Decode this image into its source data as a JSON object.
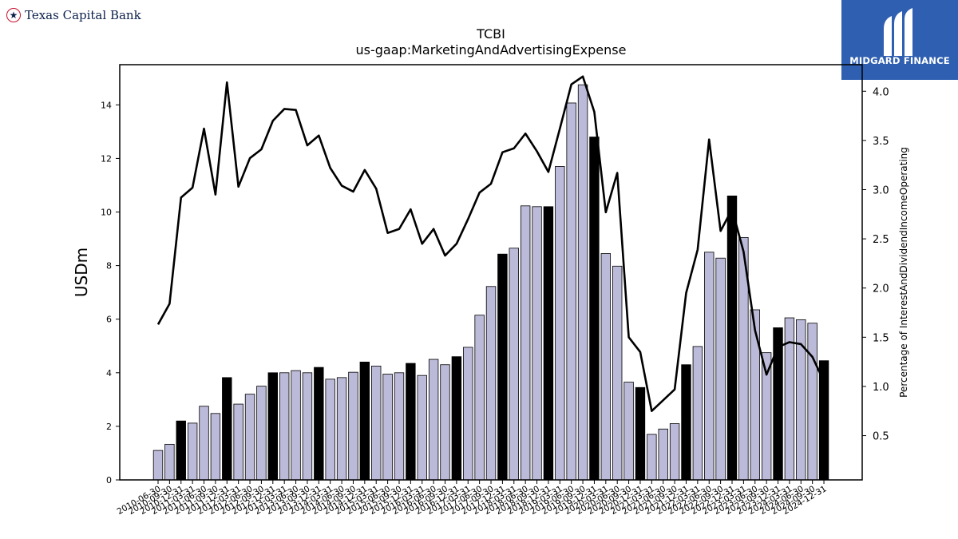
{
  "brand": {
    "company_name": "Texas Capital Bank",
    "company_icon": "star-icon",
    "badge_text": "MIDGARD FINANCE",
    "badge_color": "#2f5fb0"
  },
  "chart_data": {
    "type": "bar",
    "title": "TCBI",
    "subtitle": "us-gaap:MarketingAndAdvertisingExpense",
    "ylabel": "USDm",
    "y2label": "Percentage of InterestAndDividendIncomeOperating",
    "ylim": [
      0,
      15.5
    ],
    "y2lim": [
      0.05,
      4.27
    ],
    "yticks": [
      0,
      2,
      4,
      6,
      8,
      10,
      12,
      14
    ],
    "y2ticks": [
      0.5,
      1.0,
      1.5,
      2.0,
      2.5,
      3.0,
      3.5,
      4.0
    ],
    "bar_color": "#bcbad9",
    "highlight_color": "#000000",
    "line_color": "#000000",
    "categories": [
      "2010-06-30",
      "2010-09-30",
      "2010-12-31",
      "2011-03-31",
      "2011-06-30",
      "2011-09-30",
      "2011-12-31",
      "2012-03-31",
      "2012-06-30",
      "2012-09-30",
      "2012-12-31",
      "2013-03-31",
      "2013-06-30",
      "2013-09-30",
      "2013-12-31",
      "2014-03-31",
      "2014-06-30",
      "2014-09-30",
      "2014-12-31",
      "2015-03-31",
      "2015-06-30",
      "2015-09-30",
      "2015-12-31",
      "2016-03-31",
      "2016-06-30",
      "2016-09-30",
      "2016-12-31",
      "2017-03-31",
      "2017-06-30",
      "2017-09-30",
      "2017-12-31",
      "2018-03-31",
      "2018-06-30",
      "2018-09-30",
      "2018-12-31",
      "2019-03-31",
      "2019-06-30",
      "2019-09-30",
      "2019-12-31",
      "2020-03-31",
      "2020-06-30",
      "2020-09-30",
      "2020-12-31",
      "2021-03-31",
      "2021-06-30",
      "2021-09-30",
      "2021-12-31",
      "2022-03-31",
      "2022-06-30",
      "2022-09-30",
      "2022-12-31",
      "2023-03-31",
      "2023-06-30",
      "2023-09-30",
      "2023-12-31",
      "2024-03-31",
      "2024-06-30",
      "2024-09-30",
      "2024-12-31"
    ],
    "tick_labels": [
      "2010-06-30",
      "2010-09-30",
      "2010-12-31",
      "2011-03-31",
      "2011-06-30",
      "2011-09-30",
      "2011-12-31",
      "2012-03-31",
      "2012-06-30",
      "2012-09-30",
      "2012-12-31",
      "2013-03-31",
      "2013-06-30",
      "2013-09-30",
      "2013-12-31",
      "2014-03-31",
      "2014-06-30",
      "2014-09-30",
      "2014-12-31",
      "2015-03-31",
      "2015-06-30",
      "2015-09-30",
      "2015-12-31",
      "2016-03-31",
      "2016-06-30",
      "2016-09-30",
      "2016-12-31",
      "2017-03-31",
      "2017-06-30",
      "2017-09-30",
      "2017-12-31",
      "2018-03-31",
      "2018-06-30",
      "2018-09-30",
      "2018-12-31",
      "2019-03-31",
      "2019-06-30",
      "2019-09-30",
      "2019-12-31",
      "2020-03-31",
      "2020-06-30",
      "2020-09-30",
      "2020-12-31",
      "2021-03-31",
      "2021-06-30",
      "2021-09-30",
      "2021-12-31",
      "2022-03-31",
      "2022-06-30",
      "2022-09-30",
      "2022-12-31",
      "2023-03-31",
      "2023-06-30",
      "2023-09-30",
      "2023-12-31",
      "2024-03-31",
      "2024-06-30",
      "2024-09-30",
      "2024-12-31"
    ],
    "highlight_categories": [
      "2010-12-31",
      "2011-12-31",
      "2012-12-31",
      "2013-12-31",
      "2014-12-31",
      "2015-12-31",
      "2016-12-31",
      "2017-12-31",
      "2018-12-31",
      "2019-12-31",
      "2020-12-31",
      "2021-12-31",
      "2022-12-31",
      "2023-12-31",
      "2024-12-31"
    ],
    "series": [
      {
        "type": "bar",
        "axis": "left",
        "values": [
          1.1,
          1.33,
          2.2,
          2.12,
          2.75,
          2.48,
          3.82,
          2.83,
          3.2,
          3.5,
          4.0,
          4.0,
          4.08,
          4.0,
          4.2,
          3.76,
          3.82,
          4.02,
          4.4,
          4.25,
          3.95,
          4.0,
          4.35,
          3.9,
          4.5,
          4.3,
          4.6,
          4.95,
          6.15,
          7.22,
          8.43,
          8.65,
          10.23,
          10.2,
          10.2,
          11.7,
          14.07,
          14.75,
          12.8,
          8.45,
          7.98,
          3.65,
          3.45,
          1.7,
          1.9,
          2.1,
          4.3,
          4.98,
          8.5,
          8.28,
          10.6,
          9.05,
          6.35,
          4.75,
          5.68,
          6.05,
          5.98,
          5.85,
          4.45
        ]
      },
      {
        "type": "line",
        "axis": "right",
        "values": [
          1.63,
          1.84,
          2.92,
          3.02,
          3.62,
          2.95,
          4.09,
          3.03,
          3.32,
          3.41,
          3.7,
          3.82,
          3.81,
          3.45,
          3.55,
          3.22,
          3.04,
          2.98,
          3.2,
          3.01,
          2.56,
          2.6,
          2.8,
          2.45,
          2.6,
          2.33,
          2.45,
          2.7,
          2.97,
          3.06,
          3.38,
          3.42,
          3.57,
          3.39,
          3.18,
          3.62,
          4.07,
          4.15,
          3.79,
          2.77,
          3.17,
          1.5,
          1.35,
          0.75,
          0.86,
          0.97,
          1.95,
          2.39,
          3.51,
          2.58,
          2.8,
          2.37,
          1.57,
          1.12,
          1.4,
          1.45,
          1.43,
          1.3,
          1.05
        ]
      }
    ]
  }
}
